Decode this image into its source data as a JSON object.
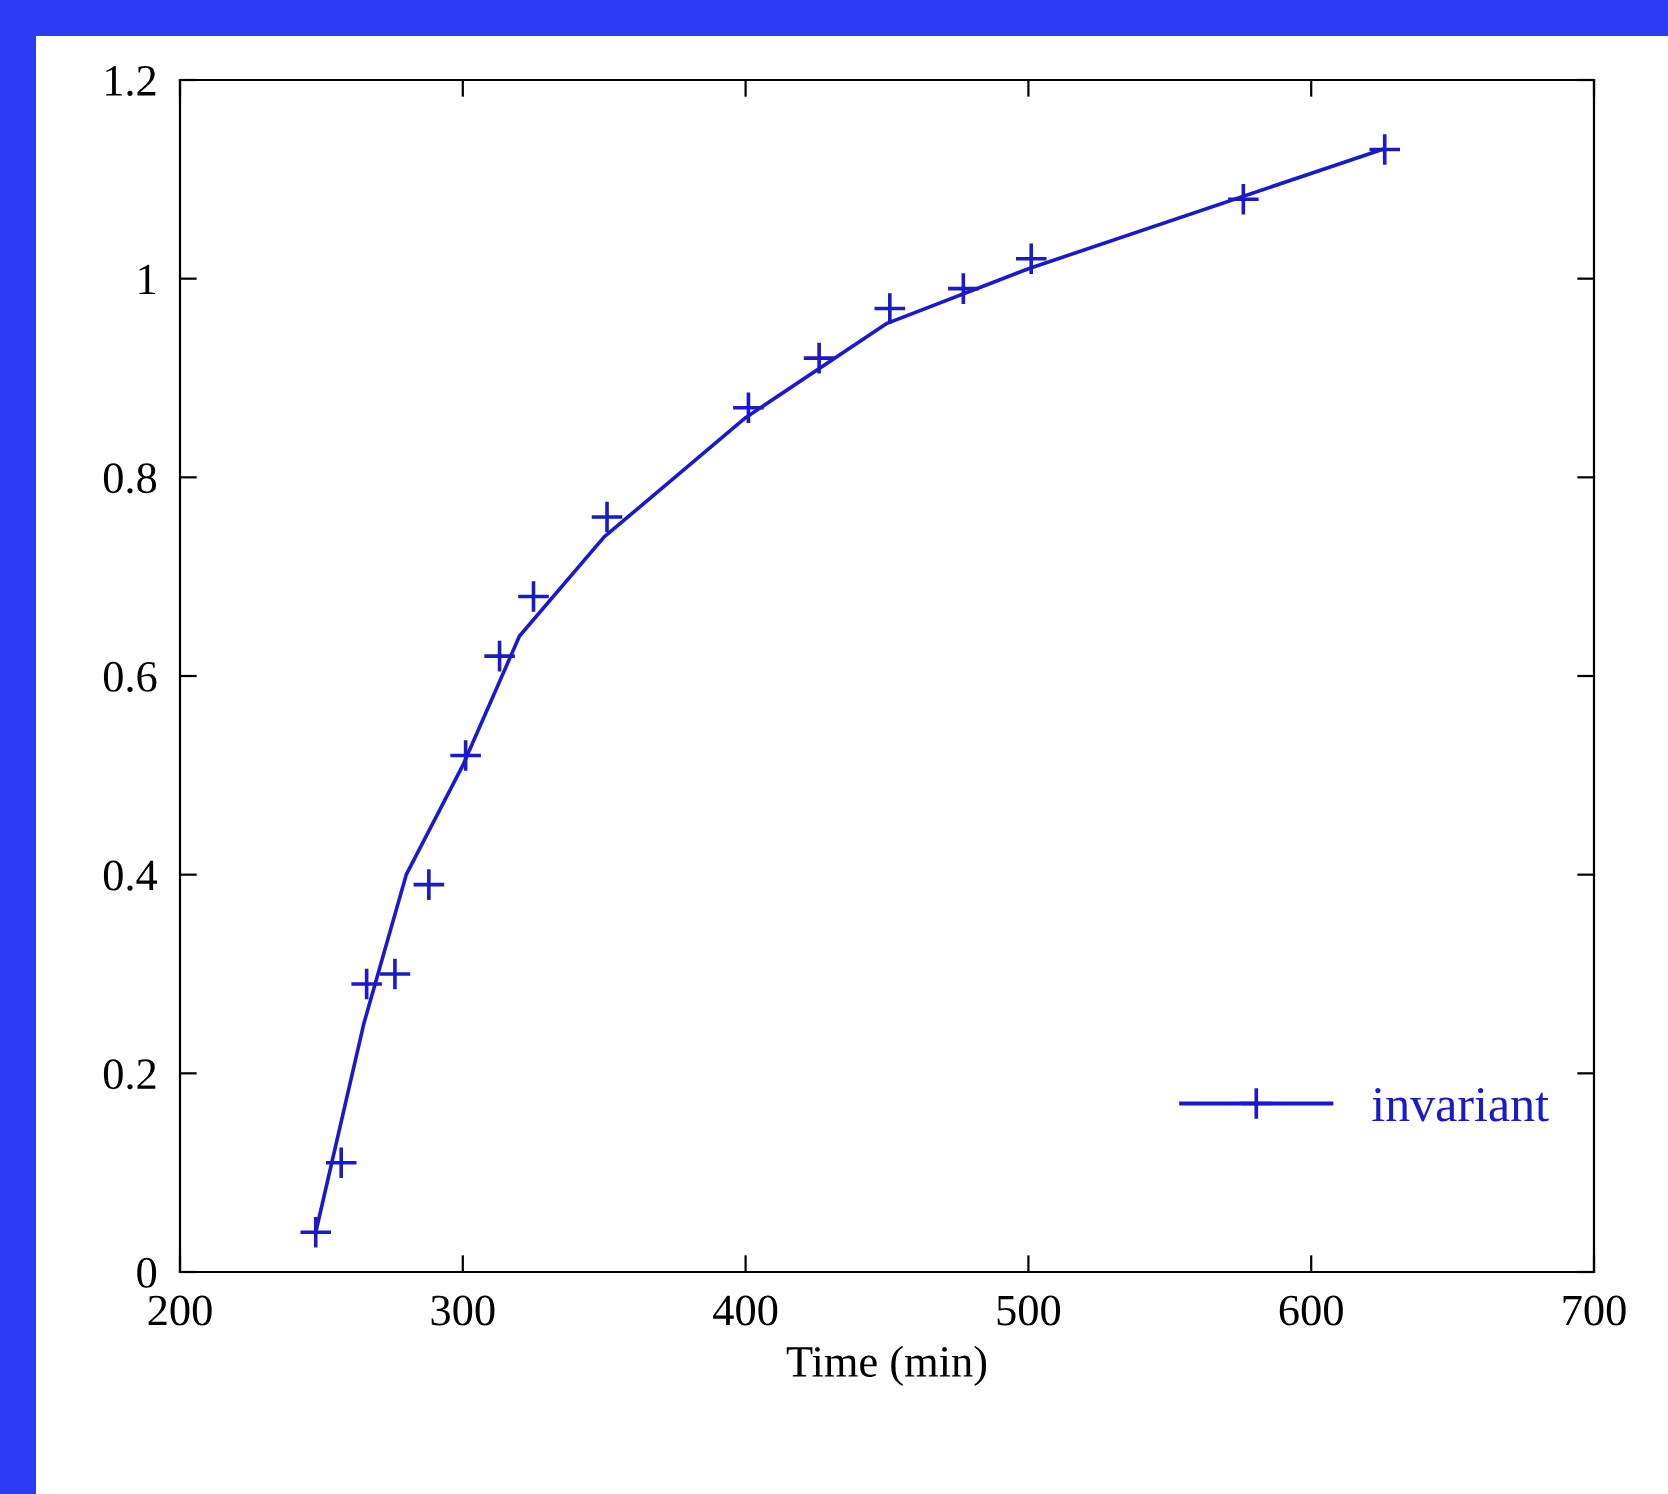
{
  "chart_data": {
    "type": "line",
    "xlabel": "Time (min)",
    "xlim": [
      200,
      700
    ],
    "ylim": [
      0,
      1.2
    ],
    "xticks": [
      200,
      300,
      400,
      500,
      600,
      700
    ],
    "yticks": [
      0,
      0.2,
      0.4,
      0.6,
      0.8,
      1,
      1.2
    ],
    "grid": false,
    "legend": "bottom right",
    "series": [
      {
        "name": "invariant",
        "type": "scatter",
        "marker": "cross",
        "color": "#1a1acc",
        "x": [
          248,
          257,
          266,
          276,
          288,
          301,
          313,
          325,
          351,
          401,
          426,
          451,
          477,
          501,
          576,
          626
        ],
        "values": [
          0.04,
          0.11,
          0.29,
          0.3,
          0.39,
          0.52,
          0.62,
          0.68,
          0.76,
          0.87,
          0.92,
          0.97,
          0.99,
          1.02,
          1.08,
          1.13
        ]
      },
      {
        "marker": "none",
        "color": "#1a1acc",
        "x": [
          248,
          265,
          280,
          300,
          320,
          350,
          400,
          450,
          500,
          625
        ],
        "values": [
          0.04,
          0.25,
          0.4,
          0.51,
          0.64,
          0.74,
          0.86,
          0.955,
          1.01,
          1.13
        ]
      }
    ]
  }
}
